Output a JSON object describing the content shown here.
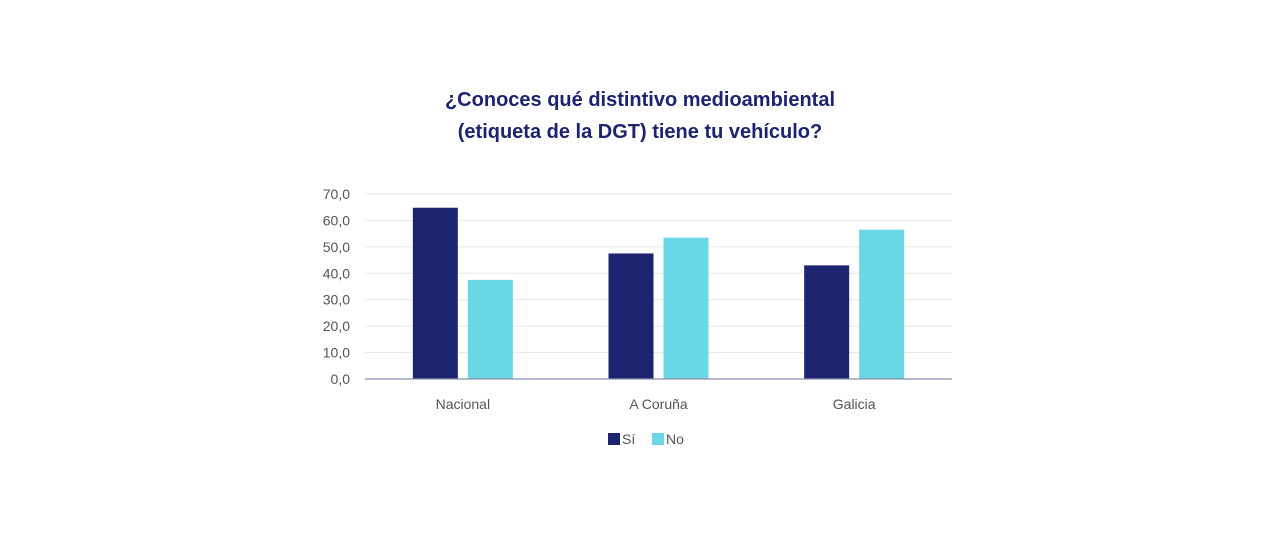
{
  "chart_data": {
    "type": "bar",
    "title_lines": [
      "¿Conoces qué distintivo medioambiental",
      "(etiqueta de la DGT) tiene tu vehículo?"
    ],
    "categories": [
      "Nacional",
      "A Coruña",
      "Galicia"
    ],
    "series": [
      {
        "name": "Sí",
        "color": "#1c2470",
        "values": [
          64.8,
          47.5,
          43.0
        ]
      },
      {
        "name": "No",
        "color": "#6ad7e5",
        "values": [
          37.5,
          53.5,
          56.5
        ]
      }
    ],
    "ylim": [
      0,
      70
    ],
    "yticks": [
      "0,0",
      "10,0",
      "20,0",
      "30,0",
      "40,0",
      "50,0",
      "60,0",
      "70,0"
    ],
    "grid": true,
    "legend_position": "bottom"
  }
}
